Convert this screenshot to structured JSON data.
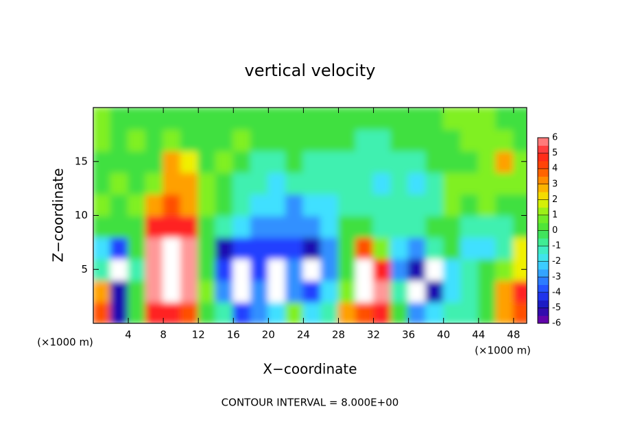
{
  "chart_data": {
    "type": "heatmap",
    "title": "vertical velocity",
    "xlabel": "X−coordinate",
    "ylabel": "Z−coordinate",
    "x_unit_label": "(×1000 m)",
    "footer": "CONTOUR INTERVAL = 8.000E+00",
    "xlim": [
      0,
      49.5
    ],
    "ylim": [
      0,
      20
    ],
    "xticks": [
      4,
      8,
      12,
      16,
      20,
      24,
      28,
      32,
      36,
      40,
      44,
      48
    ],
    "yticks": [
      5,
      10,
      15
    ],
    "x": [
      1,
      3,
      5,
      7,
      9,
      11,
      13,
      15,
      17,
      19,
      21,
      23,
      25,
      27,
      29,
      31,
      33,
      35,
      37,
      39,
      41,
      43,
      45,
      47,
      49
    ],
    "y": [
      1,
      3,
      5,
      7,
      9,
      11,
      13,
      15,
      17,
      19
    ],
    "z": [
      [
        4,
        -5,
        0,
        5,
        5,
        4,
        0,
        -1,
        -4,
        -3,
        -2,
        1,
        -2,
        -1,
        3,
        4,
        5,
        0,
        -3,
        -2,
        -1,
        -1,
        0,
        3,
        4
      ],
      [
        3,
        -5,
        0,
        6,
        8,
        6,
        1,
        -3,
        8,
        -3,
        8,
        -3,
        -4,
        -2,
        1,
        8,
        6,
        -1,
        8,
        -5,
        -2,
        -1,
        0,
        3,
        5
      ],
      [
        -1,
        8,
        -1,
        6,
        8,
        6,
        0,
        -4,
        8,
        -4,
        8,
        -3,
        8,
        -3,
        0,
        8,
        5,
        -3,
        -5,
        8,
        -2,
        -1,
        0,
        1,
        2
      ],
      [
        -2,
        -4,
        0,
        6,
        8,
        6,
        0,
        -5,
        -4,
        -4,
        -4,
        -4,
        -5,
        -3,
        0,
        4,
        1,
        -2,
        -3,
        -1,
        0,
        -2,
        -2,
        -1,
        2
      ],
      [
        0,
        0,
        0,
        5,
        5,
        5,
        0,
        -1,
        -2,
        -3,
        -3,
        -3,
        -3,
        -2,
        0,
        0,
        -1,
        -1,
        -1,
        0,
        0,
        -1,
        -1,
        -1,
        0
      ],
      [
        1,
        0,
        1,
        3,
        4,
        3,
        1,
        0,
        -1,
        -2,
        -2,
        -3,
        -2,
        -2,
        -1,
        -1,
        -1,
        -1,
        -1,
        -1,
        1,
        0,
        1,
        0,
        0
      ],
      [
        0,
        1,
        0,
        1,
        3,
        3,
        1,
        0,
        -1,
        -1,
        -2,
        -1,
        -1,
        -1,
        -1,
        -1,
        -2,
        -1,
        -2,
        -1,
        1,
        1,
        1,
        1,
        1
      ],
      [
        0,
        0,
        0,
        0,
        3,
        2,
        0,
        1,
        0,
        -1,
        -1,
        0,
        -1,
        -1,
        -1,
        -1,
        -1,
        -1,
        -1,
        0,
        0,
        0,
        1,
        3,
        1
      ],
      [
        1,
        0,
        1,
        0,
        1,
        0,
        0,
        0,
        1,
        0,
        0,
        0,
        0,
        0,
        0,
        -1,
        -1,
        0,
        0,
        0,
        0,
        1,
        1,
        1,
        0
      ],
      [
        1,
        0,
        0,
        0,
        0,
        0,
        0,
        0,
        0,
        0,
        0,
        0,
        0,
        0,
        0,
        0,
        0,
        0,
        0,
        0,
        1,
        1,
        1,
        0,
        0
      ]
    ],
    "cbar_ticks": [
      -6,
      -5,
      -4,
      -3,
      -2,
      -1,
      0,
      1,
      2,
      3,
      4,
      5,
      6
    ],
    "colors": [
      "#7a00a8",
      "#1a10b0",
      "#2040ff",
      "#3090ff",
      "#40e0ff",
      "#40f0b0",
      "#40e040",
      "#80f020",
      "#f0f000",
      "#ffa000",
      "#ff5000",
      "#ff2020",
      "#ff9898"
    ],
    "over_color": "#ffffff"
  }
}
